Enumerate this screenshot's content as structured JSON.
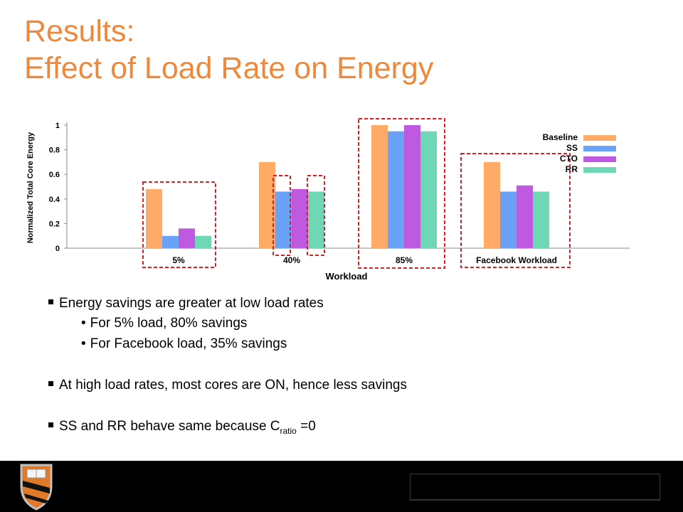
{
  "title_line1": "Results:",
  "title_line2": "Effect of Load Rate on Energy",
  "bullets": {
    "b1": "Energy savings are greater at low load rates",
    "b1a": "For 5% load, 80% savings",
    "b1b": "For Facebook load, 35% savings",
    "b2": "At high load rates, most cores are ON, hence less savings",
    "b3_pre": "SS and RR behave same because C",
    "b3_sub": "ratio",
    "b3_post": " =0"
  },
  "colors": {
    "title": "#f0883a",
    "baseline": "#ffaa66",
    "ss": "#6aa2f7",
    "cto": "#bf5ae0",
    "rr": "#6fd7b5",
    "highlight": "#d91f26"
  },
  "chart_data": {
    "type": "bar",
    "categories": [
      "5%",
      "40%",
      "85%",
      "Facebook Workload"
    ],
    "series": [
      {
        "name": "Baseline",
        "values": [
          0.48,
          0.7,
          1.0,
          0.7
        ]
      },
      {
        "name": "SS",
        "values": [
          0.1,
          0.46,
          0.95,
          0.46
        ]
      },
      {
        "name": "CTO",
        "values": [
          0.16,
          0.48,
          1.0,
          0.51
        ]
      },
      {
        "name": "RR",
        "values": [
          0.1,
          0.46,
          0.95,
          0.46
        ]
      }
    ],
    "xlabel": "Workload",
    "ylabel": "Normalized Total Core Energy",
    "ylim": [
      0,
      1
    ],
    "yticks": [
      "0",
      "0.2",
      "0.4",
      "0.6",
      "0.8",
      "1"
    ],
    "legend": "top-right",
    "grid": false
  }
}
